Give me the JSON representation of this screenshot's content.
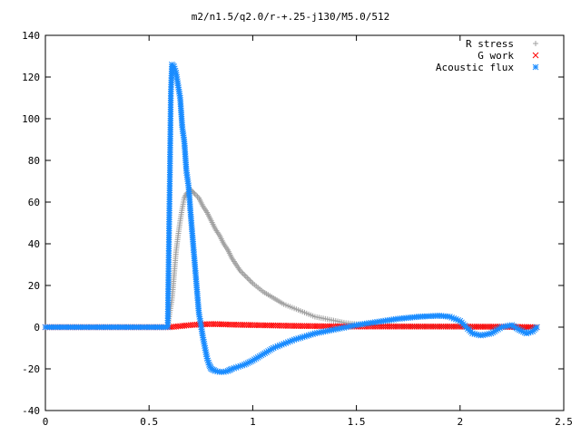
{
  "chart_data": {
    "type": "scatter",
    "title": "m2/n1.5/q2.0/r-+.25-j130/M5.0/512",
    "xlabel": "",
    "ylabel": "",
    "xlim": [
      0,
      2.5
    ],
    "ylim": [
      -40,
      140
    ],
    "x_ticks": [
      0,
      0.5,
      1,
      1.5,
      2,
      2.5
    ],
    "x_tick_labels": [
      "0",
      "0.5",
      "1",
      "1.5",
      "2",
      "2.5"
    ],
    "y_ticks": [
      -40,
      -20,
      0,
      20,
      40,
      60,
      80,
      100,
      120,
      140
    ],
    "y_tick_labels": [
      "-40",
      "-20",
      "0",
      "20",
      "40",
      "60",
      "80",
      "100",
      "120",
      "140"
    ],
    "grid": false,
    "legend_position": "top-right",
    "series": [
      {
        "name": "R stress",
        "marker": "plus",
        "color": "#a0a0a0",
        "points": [
          [
            0.0,
            0
          ],
          [
            0.1,
            0
          ],
          [
            0.2,
            0
          ],
          [
            0.3,
            0
          ],
          [
            0.4,
            0
          ],
          [
            0.5,
            0
          ],
          [
            0.59,
            0
          ],
          [
            0.6,
            7
          ],
          [
            0.61,
            13
          ],
          [
            0.615,
            18
          ],
          [
            0.62,
            24
          ],
          [
            0.625,
            30
          ],
          [
            0.63,
            36
          ],
          [
            0.64,
            44
          ],
          [
            0.65,
            51
          ],
          [
            0.66,
            57
          ],
          [
            0.67,
            62
          ],
          [
            0.68,
            64
          ],
          [
            0.69,
            65
          ],
          [
            0.7,
            66
          ],
          [
            0.71,
            65
          ],
          [
            0.72,
            64
          ],
          [
            0.74,
            62
          ],
          [
            0.76,
            58
          ],
          [
            0.78,
            55
          ],
          [
            0.8,
            51
          ],
          [
            0.82,
            47
          ],
          [
            0.84,
            44
          ],
          [
            0.86,
            40
          ],
          [
            0.88,
            37
          ],
          [
            0.9,
            33
          ],
          [
            0.92,
            30
          ],
          [
            0.94,
            27
          ],
          [
            0.96,
            25
          ],
          [
            0.98,
            23
          ],
          [
            1.0,
            21
          ],
          [
            1.05,
            17
          ],
          [
            1.1,
            14
          ],
          [
            1.15,
            11
          ],
          [
            1.2,
            9
          ],
          [
            1.25,
            7
          ],
          [
            1.3,
            5
          ],
          [
            1.35,
            4
          ],
          [
            1.4,
            3
          ],
          [
            1.45,
            2
          ],
          [
            1.5,
            1.5
          ],
          [
            1.6,
            1
          ],
          [
            1.7,
            0.5
          ],
          [
            1.8,
            0.3
          ],
          [
            1.9,
            0.2
          ],
          [
            2.0,
            0.1
          ],
          [
            2.1,
            0.1
          ],
          [
            2.2,
            0
          ],
          [
            2.3,
            0
          ],
          [
            2.37,
            0
          ]
        ]
      },
      {
        "name": "G work",
        "marker": "cross",
        "color": "#ff0000",
        "points": [
          [
            0.0,
            0
          ],
          [
            0.1,
            0
          ],
          [
            0.2,
            0
          ],
          [
            0.3,
            0
          ],
          [
            0.4,
            0
          ],
          [
            0.5,
            0
          ],
          [
            0.6,
            0
          ],
          [
            0.65,
            0.5
          ],
          [
            0.7,
            1
          ],
          [
            0.75,
            1.3
          ],
          [
            0.8,
            1.5
          ],
          [
            0.85,
            1.4
          ],
          [
            0.9,
            1.2
          ],
          [
            1.0,
            1
          ],
          [
            1.1,
            0.8
          ],
          [
            1.2,
            0.6
          ],
          [
            1.3,
            0.5
          ],
          [
            1.4,
            0.4
          ],
          [
            1.5,
            0.3
          ],
          [
            1.6,
            0.3
          ],
          [
            1.7,
            0.3
          ],
          [
            1.8,
            0.3
          ],
          [
            1.9,
            0.3
          ],
          [
            2.0,
            0.3
          ],
          [
            2.1,
            0.2
          ],
          [
            2.2,
            0.2
          ],
          [
            2.3,
            0.1
          ],
          [
            2.37,
            0
          ]
        ]
      },
      {
        "name": "Acoustic flux",
        "marker": "asterisk",
        "color": "#1a8cff",
        "points": [
          [
            0.0,
            0
          ],
          [
            0.1,
            0
          ],
          [
            0.2,
            0
          ],
          [
            0.3,
            0
          ],
          [
            0.4,
            0
          ],
          [
            0.5,
            0
          ],
          [
            0.59,
            0
          ],
          [
            0.6,
            71
          ],
          [
            0.605,
            112
          ],
          [
            0.61,
            126
          ],
          [
            0.62,
            125
          ],
          [
            0.63,
            122
          ],
          [
            0.64,
            116
          ],
          [
            0.65,
            110
          ],
          [
            0.655,
            103
          ],
          [
            0.66,
            96
          ],
          [
            0.67,
            89
          ],
          [
            0.675,
            82
          ],
          [
            0.68,
            75
          ],
          [
            0.69,
            68
          ],
          [
            0.695,
            62
          ],
          [
            0.7,
            55
          ],
          [
            0.705,
            49
          ],
          [
            0.71,
            43
          ],
          [
            0.715,
            37
          ],
          [
            0.72,
            31
          ],
          [
            0.725,
            25
          ],
          [
            0.73,
            19
          ],
          [
            0.735,
            13
          ],
          [
            0.74,
            7
          ],
          [
            0.75,
            1
          ],
          [
            0.76,
            -5
          ],
          [
            0.77,
            -10
          ],
          [
            0.78,
            -15
          ],
          [
            0.79,
            -18
          ],
          [
            0.8,
            -20
          ],
          [
            0.82,
            -21
          ],
          [
            0.84,
            -21.5
          ],
          [
            0.86,
            -21.5
          ],
          [
            0.88,
            -21
          ],
          [
            0.9,
            -20
          ],
          [
            0.93,
            -19
          ],
          [
            0.96,
            -18
          ],
          [
            1.0,
            -16
          ],
          [
            1.05,
            -13
          ],
          [
            1.1,
            -10
          ],
          [
            1.15,
            -8
          ],
          [
            1.2,
            -6
          ],
          [
            1.25,
            -4.5
          ],
          [
            1.3,
            -3
          ],
          [
            1.35,
            -2
          ],
          [
            1.4,
            -1
          ],
          [
            1.45,
            0
          ],
          [
            1.5,
            1
          ],
          [
            1.6,
            2.5
          ],
          [
            1.7,
            4
          ],
          [
            1.8,
            5
          ],
          [
            1.9,
            5.5
          ],
          [
            1.95,
            5
          ],
          [
            2.0,
            3
          ],
          [
            2.03,
            0
          ],
          [
            2.06,
            -3
          ],
          [
            2.1,
            -4
          ],
          [
            2.15,
            -3
          ],
          [
            2.2,
            0
          ],
          [
            2.25,
            1
          ],
          [
            2.28,
            -1
          ],
          [
            2.32,
            -3
          ],
          [
            2.35,
            -2
          ],
          [
            2.37,
            0
          ]
        ]
      }
    ]
  }
}
